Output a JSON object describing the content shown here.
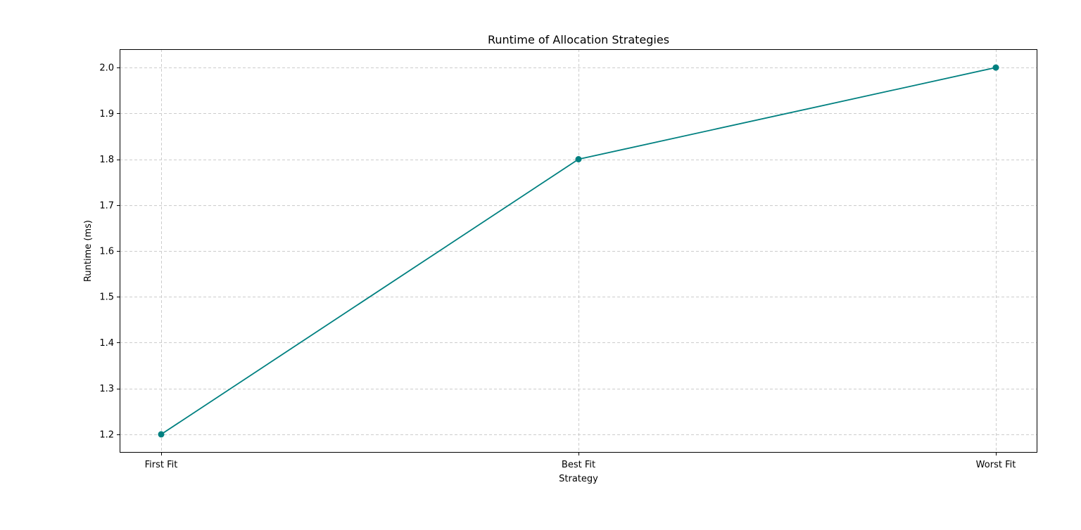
{
  "chart_data": {
    "type": "line",
    "title": "Runtime of Allocation Strategies",
    "xlabel": "Strategy",
    "ylabel": "Runtime (ms)",
    "categories": [
      "First Fit",
      "Best Fit",
      "Worst Fit"
    ],
    "series": [
      {
        "values": [
          1.2,
          1.8,
          2.0
        ],
        "color": "#008080",
        "marker": "circle"
      }
    ],
    "ylim": [
      1.16,
      2.04
    ],
    "yticks": [
      "1.2",
      "1.3",
      "1.4",
      "1.5",
      "1.6",
      "1.7",
      "1.8",
      "1.9",
      "2.0"
    ],
    "grid": true,
    "grid_color": "#cccccc"
  }
}
